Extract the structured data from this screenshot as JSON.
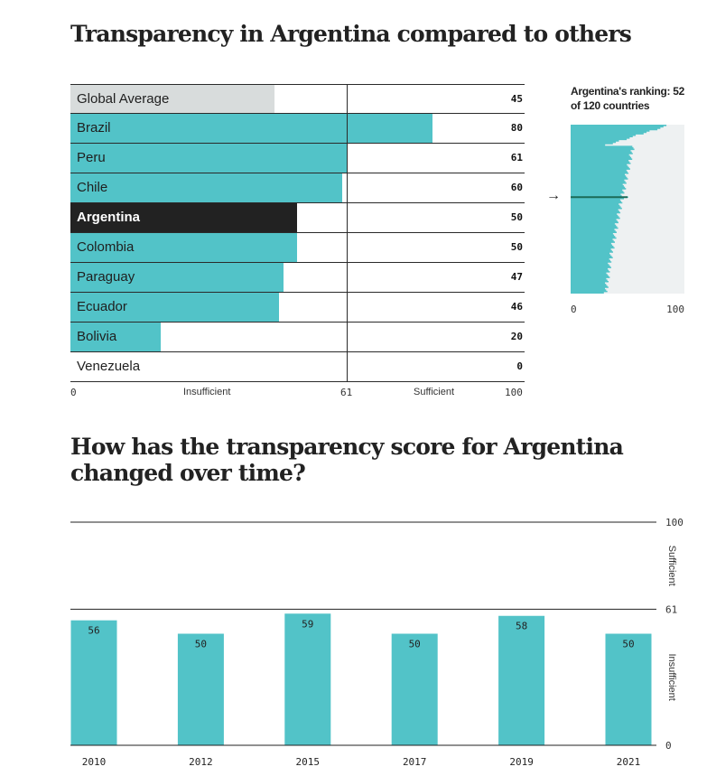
{
  "titles": {
    "comparison": "Transparency in Argentina compared to others",
    "over_time": "How has the transparency score for Argentina changed over time?"
  },
  "ranking": {
    "label": "Argentina's ranking: 52 of 120 countries",
    "axis_min": "0",
    "axis_max": "100",
    "arrow": "→"
  },
  "axis": {
    "min": "0",
    "insufficient": "Insufficient",
    "threshold": "61",
    "sufficient": "Sufficient",
    "max": "100"
  },
  "colors": {
    "bar": "#52c3c8",
    "average": "#d8dcdc",
    "highlight": "#222222",
    "background_strip": "#eef1f2",
    "rank_line": "#1b6b57"
  },
  "chart_data": [
    {
      "type": "bar",
      "orientation": "horizontal",
      "title": "Transparency in Argentina compared to others",
      "categories": [
        "Global Average",
        "Brazil",
        "Peru",
        "Chile",
        "Argentina",
        "Colombia",
        "Paraguay",
        "Ecuador",
        "Bolivia",
        "Venezuela"
      ],
      "values": [
        45,
        80,
        61,
        60,
        50,
        50,
        47,
        46,
        20,
        0
      ],
      "value_labels": [
        "45",
        "80",
        "61",
        "60",
        "50",
        "50",
        "47",
        "46",
        "20",
        "0"
      ],
      "highlight": "Argentina",
      "reference": "Global Average",
      "threshold": 61,
      "xlim": [
        0,
        100
      ]
    },
    {
      "type": "area",
      "title": "Argentina's ranking: 52 of 120 countries",
      "rank": 52,
      "total": 120,
      "xlim": [
        0,
        100
      ]
    },
    {
      "type": "bar",
      "title": "How has the transparency score for Argentina changed over time?",
      "categories": [
        "2010",
        "2012",
        "2015",
        "2017",
        "2019",
        "2021"
      ],
      "values": [
        56,
        50,
        59,
        50,
        58,
        50
      ],
      "value_labels": [
        "56",
        "50",
        "59",
        "50",
        "58",
        "50"
      ],
      "ylim": [
        0,
        100
      ],
      "threshold": 61,
      "y_ticks": [
        "0",
        "61",
        "100"
      ],
      "zone_labels": [
        "Sufficient",
        "Insufficient"
      ]
    }
  ]
}
